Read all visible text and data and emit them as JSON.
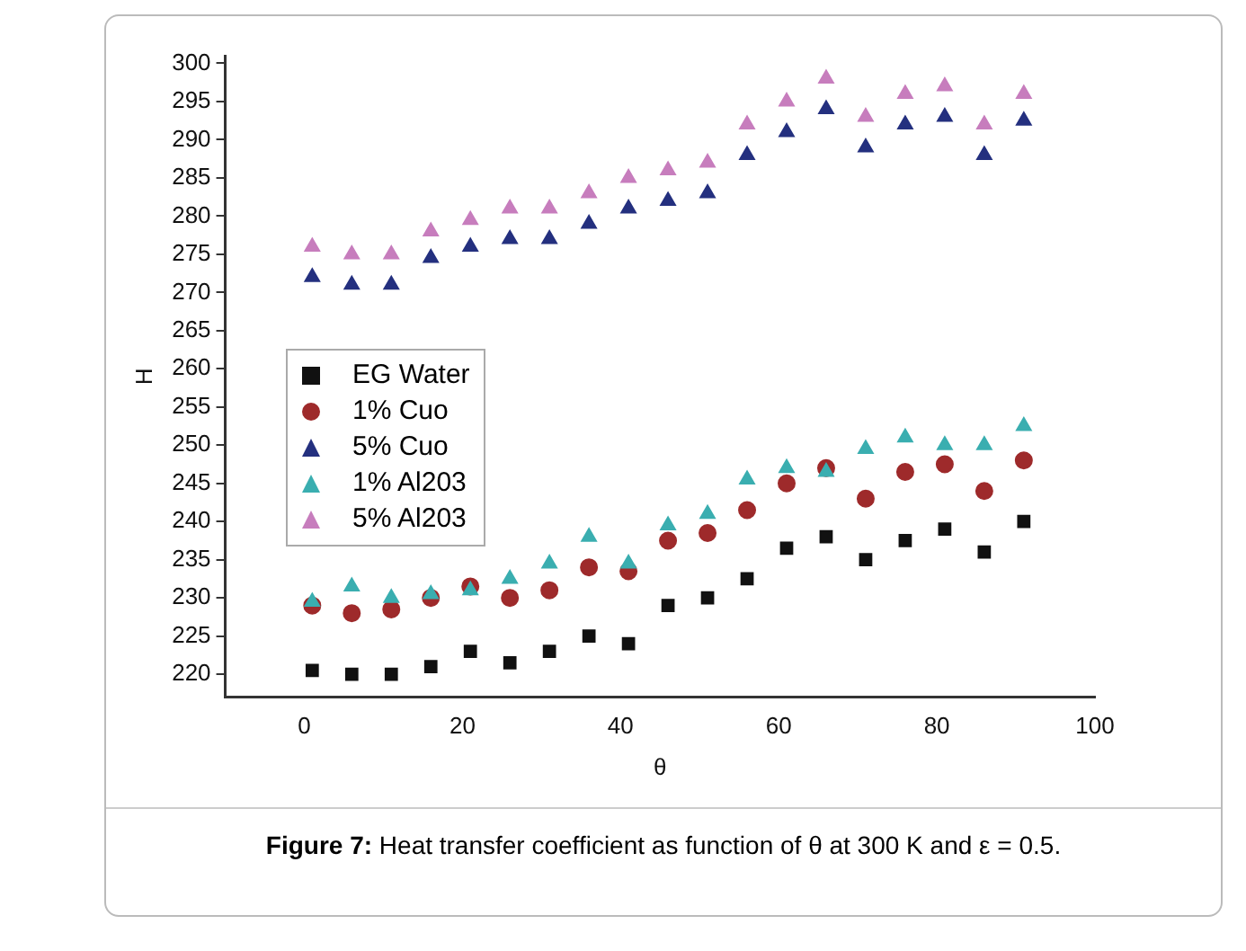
{
  "chart_data": {
    "type": "scatter",
    "xlabel": "θ",
    "ylabel": "H",
    "x": [
      1,
      6,
      11,
      16,
      21,
      26,
      31,
      36,
      41,
      46,
      51,
      56,
      61,
      66,
      71,
      76,
      81,
      86,
      91
    ],
    "xlim": [
      -10,
      100
    ],
    "xticks": [
      0,
      20,
      40,
      60,
      80,
      100
    ],
    "ylim": [
      217,
      301
    ],
    "yticks": [
      220,
      225,
      230,
      235,
      240,
      245,
      250,
      255,
      260,
      265,
      270,
      275,
      280,
      285,
      290,
      295,
      300
    ],
    "grid": false,
    "legend": "left",
    "series": [
      {
        "name": "EG Water",
        "color": "#111111",
        "marker": "square",
        "values": [
          220.5,
          220,
          220,
          221,
          223,
          221.5,
          223,
          225,
          224,
          229,
          230,
          232.5,
          236.5,
          238,
          235,
          237.5,
          239,
          236,
          240
        ]
      },
      {
        "name": "1% Cuo",
        "color": "#9e2a2b",
        "marker": "circle",
        "values": [
          229,
          228,
          228.5,
          230,
          231.5,
          230,
          231,
          234,
          233.5,
          237.5,
          238.5,
          241.5,
          245,
          247,
          243,
          246.5,
          247.5,
          244,
          248
        ]
      },
      {
        "name": "5% Cuo",
        "color": "#24307f",
        "marker": "triangle",
        "values": [
          272,
          271,
          271,
          274.5,
          276,
          277,
          277,
          279,
          281,
          282,
          283,
          288,
          291,
          294,
          289,
          292,
          293,
          288,
          292.5
        ]
      },
      {
        "name": "1% Al203",
        "color": "#3aaeb0",
        "marker": "triangle",
        "values": [
          229.5,
          231.5,
          230,
          230.5,
          231,
          232.5,
          234.5,
          238,
          234.5,
          239.5,
          241,
          245.5,
          247,
          246.5,
          249.5,
          251,
          250,
          250,
          252.5
        ]
      },
      {
        "name": "5% Al203",
        "color": "#c77dbd",
        "marker": "triangle",
        "values": [
          276,
          275,
          275,
          278,
          279.5,
          281,
          281,
          283,
          285,
          286,
          287,
          292,
          295,
          298,
          293,
          296,
          297,
          292,
          296
        ]
      }
    ],
    "annotations": [
      "Figure 7: Heat transfer coefficient as function of θ at 300 K and ε = 0.5."
    ]
  }
}
